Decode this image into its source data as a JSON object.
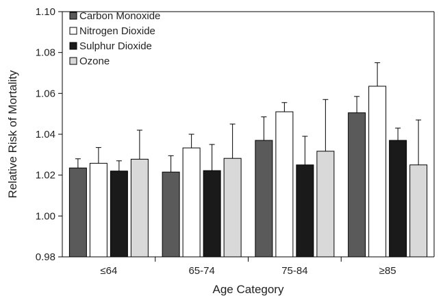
{
  "chart_data": {
    "type": "bar",
    "title": "",
    "xlabel": "Age Category",
    "ylabel": "Relative Risk of Mortality",
    "ylim": [
      0.98,
      1.1
    ],
    "yticks": [
      0.98,
      1.0,
      1.02,
      1.04,
      1.06,
      1.08,
      1.1
    ],
    "ytick_labels": [
      "0.98",
      "1.00",
      "1.02",
      "1.04",
      "1.06",
      "1.08",
      "1.10"
    ],
    "categories": [
      "≤64",
      "65-74",
      "75-84",
      "≥85"
    ],
    "grid": false,
    "legend_position": "top-left",
    "error_bars": "upper",
    "series": [
      {
        "name": "Carbon Monoxide",
        "color": "#5a5a5a",
        "values": [
          1.0235,
          1.0215,
          1.037,
          1.0505
        ],
        "upper": [
          1.028,
          1.0295,
          1.0485,
          1.0585
        ]
      },
      {
        "name": "Nitrogen Dioxide",
        "color": "#ffffff",
        "values": [
          1.0258,
          1.0333,
          1.051,
          1.0635
        ],
        "upper": [
          1.0335,
          1.04,
          1.0555,
          1.075
        ]
      },
      {
        "name": "Sulphur Dioxide",
        "color": "#1a1a1a",
        "values": [
          1.022,
          1.0222,
          1.025,
          1.037
        ],
        "upper": [
          1.027,
          1.035,
          1.039,
          1.043
        ]
      },
      {
        "name": "Ozone",
        "color": "#d9d9d9",
        "values": [
          1.0278,
          1.0282,
          1.0317,
          1.025
        ],
        "upper": [
          1.042,
          1.045,
          1.057,
          1.047
        ]
      }
    ]
  }
}
